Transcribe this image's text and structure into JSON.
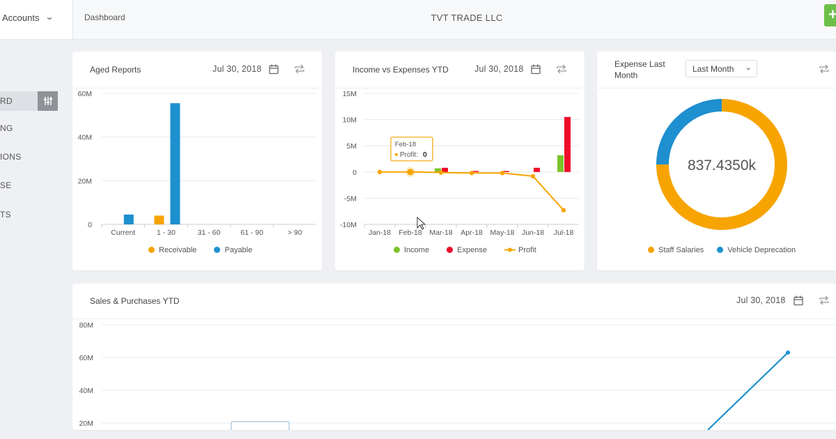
{
  "topbar": {
    "account_label": "Accounts",
    "breadcrumb": "Dashboard",
    "company": "TVT TRADE LLC",
    "add_label": "+"
  },
  "sidebar": {
    "items": [
      {
        "label": "RD"
      },
      {
        "label": "NG"
      },
      {
        "label": "IONS"
      },
      {
        "label": "SE"
      },
      {
        "label": "TS"
      }
    ]
  },
  "cards": {
    "aged": {
      "title": "Aged Reports",
      "date": "Jul 30, 2018"
    },
    "income": {
      "title": "Income vs Expenses YTD",
      "date": "Jul 30, 2018"
    },
    "expense": {
      "title_line1": "Expense Last",
      "title_line2": "Month",
      "select_value": "Last Month"
    },
    "sales": {
      "title": "Sales & Purchases YTD",
      "date": "Jul 30, 2018"
    }
  },
  "colors": {
    "receivable": "#f7a400",
    "payable": "#1e8fcf",
    "income": "#7cc22a",
    "expense": "#ef0b2a",
    "profit": "#f7a400",
    "staff": "#f7a400",
    "vehicle": "#1e8fcf",
    "line": "#1e8fcf",
    "grid": "#e7e9ec",
    "axis_text": "#555555"
  },
  "chart_data": [
    {
      "type": "bar",
      "categories": [
        "Current",
        "1 - 30",
        "31 - 60",
        "61 - 90",
        "> 90"
      ],
      "series": [
        {
          "name": "Receivable",
          "values": [
            0,
            4,
            0,
            0,
            0
          ]
        },
        {
          "name": "Payable",
          "values": [
            4.5,
            55.5,
            0,
            0,
            0
          ]
        }
      ],
      "y_ticks": [
        "0",
        "20M",
        "40M",
        "60M"
      ],
      "ylim": [
        0,
        60
      ],
      "legend": "bottom"
    },
    {
      "type": "bar",
      "categories": [
        "Jan-18",
        "Feb-18",
        "Mar-18",
        "Apr-18",
        "May-18",
        "Jun-18",
        "Jul-18"
      ],
      "series": [
        {
          "name": "Income",
          "values": [
            0,
            0,
            0.7,
            0,
            0,
            0,
            3.2
          ]
        },
        {
          "name": "Expense",
          "values": [
            0,
            0,
            0.8,
            0.2,
            0.2,
            0.8,
            10.5
          ]
        },
        {
          "name": "Profit",
          "values": [
            0,
            0,
            -0.1,
            -0.2,
            -0.2,
            -0.8,
            -7.3
          ]
        }
      ],
      "y_ticks": [
        "-10M",
        "-5M",
        "0",
        "5M",
        "10M",
        "15M"
      ],
      "ylim": [
        -10,
        15
      ],
      "legend": "bottom",
      "tooltip": {
        "title": "Feb-18",
        "label": "Profit:",
        "value": "0"
      }
    },
    {
      "type": "pie",
      "center_label": "837.4350k",
      "slices": [
        {
          "name": "Staff Salaries",
          "value": 75
        },
        {
          "name": "Vehicle Deprecation",
          "value": 25
        }
      ],
      "legend": "bottom"
    },
    {
      "type": "line",
      "y_ticks": [
        "20M",
        "40M",
        "60M",
        "80M"
      ],
      "ylim": [
        20,
        80
      ],
      "series": [
        {
          "values": [
            63
          ]
        }
      ]
    }
  ]
}
